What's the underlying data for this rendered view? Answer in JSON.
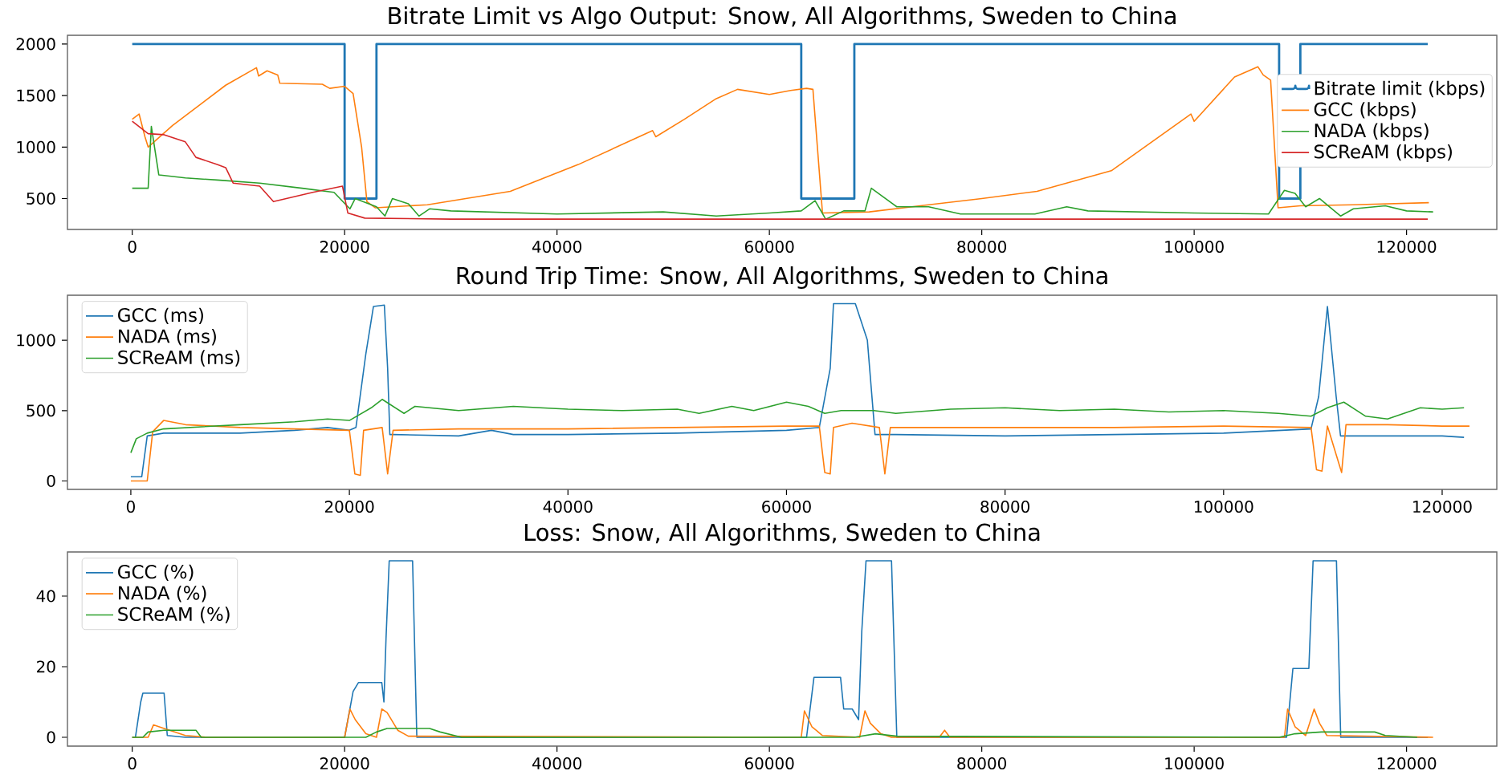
{
  "chart_data": [
    {
      "type": "line",
      "title": "Bitrate Limit vs Algo Output: Snow, All Algorithms, Sweden to China",
      "xlim": [
        -6100,
        128500
      ],
      "ylim": [
        200,
        2085
      ],
      "xticks": [
        0,
        20000,
        40000,
        60000,
        80000,
        100000,
        120000
      ],
      "yticks": [
        500,
        1000,
        1500,
        2000
      ],
      "legend": "top right",
      "series": [
        {
          "name": "Bitrate limit (kbps)",
          "type": "step",
          "color": "#1f77b4",
          "x": [
            0,
            20000,
            23000,
            63000,
            68000,
            108000,
            110000,
            122000
          ],
          "values": [
            2000,
            500,
            2000,
            500,
            2000,
            500,
            2000,
            2000
          ]
        },
        {
          "name": "GCC (kbps)",
          "color": "#ff7f0e",
          "x": [
            0,
            650,
            1200,
            1500,
            3800,
            8800,
            11700,
            11900,
            12700,
            13700,
            13900,
            17900,
            18600,
            20000,
            20800,
            21600,
            22100,
            22900,
            27800,
            35600,
            42000,
            49000,
            49300,
            52000,
            55000,
            57000,
            60000,
            62000,
            63500,
            64100,
            65000,
            69400,
            75000,
            80000,
            85200,
            92200,
            99700,
            100000,
            103800,
            106000,
            106500,
            107200,
            107900,
            110000,
            115000,
            122100
          ],
          "values": [
            1270,
            1320,
            1100,
            1000,
            1210,
            1600,
            1770,
            1690,
            1740,
            1700,
            1620,
            1610,
            1570,
            1590,
            1520,
            1000,
            470,
            410,
            440,
            570,
            830,
            1160,
            1100,
            1270,
            1470,
            1560,
            1510,
            1550,
            1570,
            1560,
            360,
            370,
            440,
            500,
            570,
            770,
            1320,
            1250,
            1680,
            1780,
            1700,
            1650,
            410,
            430,
            440,
            460
          ]
        },
        {
          "name": "NADA (kbps)",
          "color": "#2ca02c",
          "x": [
            0,
            1500,
            1800,
            2500,
            5000,
            8000,
            12000,
            16000,
            19000,
            20500,
            21000,
            23000,
            23800,
            24500,
            26000,
            27000,
            28000,
            30000,
            40000,
            50000,
            55000,
            60000,
            63000,
            64300,
            65300,
            67000,
            69000,
            69600,
            72000,
            75000,
            78000,
            85000,
            88000,
            90000,
            100000,
            107000,
            108500,
            109500,
            110500,
            111800,
            113800,
            115000,
            118000,
            120000,
            122500
          ],
          "values": [
            600,
            600,
            1200,
            730,
            700,
            680,
            650,
            600,
            560,
            400,
            500,
            420,
            330,
            500,
            450,
            330,
            400,
            380,
            350,
            370,
            330,
            360,
            380,
            480,
            300,
            380,
            380,
            600,
            420,
            420,
            350,
            350,
            420,
            380,
            360,
            350,
            580,
            550,
            420,
            500,
            330,
            400,
            430,
            380,
            370
          ]
        },
        {
          "name": "SCReAM (kbps)",
          "color": "#d62728",
          "x": [
            0,
            1500,
            3000,
            5000,
            6000,
            8000,
            8800,
            9500,
            12000,
            13300,
            17000,
            19800,
            20300,
            21900,
            30000,
            60000,
            90000,
            122000
          ],
          "values": [
            1250,
            1130,
            1120,
            1050,
            900,
            830,
            800,
            650,
            620,
            470,
            560,
            620,
            360,
            310,
            300,
            300,
            300,
            300
          ]
        }
      ]
    },
    {
      "type": "line",
      "title": "Round Trip Time: Snow, All Algorithms, Sweden to China",
      "xlim": [
        -5800,
        125000
      ],
      "ylim": [
        -60,
        1320
      ],
      "xticks": [
        0,
        20000,
        40000,
        60000,
        80000,
        100000,
        120000
      ],
      "yticks": [
        0,
        500,
        1000
      ],
      "legend": "top left",
      "series": [
        {
          "name": "GCC (ms)",
          "color": "#1f77b4",
          "x": [
            0,
            1000,
            1500,
            3000,
            10000,
            15000,
            18000,
            20000,
            20600,
            21500,
            22200,
            23200,
            23500,
            23700,
            24000,
            30000,
            33000,
            35000,
            40000,
            50000,
            55000,
            60000,
            63000,
            64000,
            64300,
            66300,
            67400,
            68100,
            70000,
            80000,
            90000,
            100000,
            108000,
            108700,
            109500,
            110300,
            110700,
            115000,
            120000,
            122000
          ],
          "values": [
            30,
            30,
            320,
            340,
            340,
            360,
            380,
            360,
            380,
            900,
            1240,
            1250,
            800,
            330,
            330,
            320,
            360,
            330,
            330,
            340,
            350,
            360,
            380,
            800,
            1260,
            1260,
            1000,
            330,
            330,
            320,
            330,
            340,
            370,
            600,
            1240,
            600,
            320,
            320,
            320,
            310
          ]
        },
        {
          "name": "NADA (ms)",
          "color": "#ff7f0e",
          "x": [
            0,
            1500,
            2000,
            3000,
            5000,
            10000,
            15000,
            20000,
            20500,
            21000,
            21300,
            23000,
            23500,
            24000,
            30000,
            40000,
            50000,
            60000,
            63000,
            63500,
            64000,
            64300,
            66000,
            68500,
            69000,
            69500,
            80000,
            90000,
            100000,
            108000,
            108500,
            109000,
            109500,
            110800,
            111200,
            115000,
            120000,
            122500
          ],
          "values": [
            0,
            0,
            350,
            430,
            400,
            380,
            370,
            360,
            50,
            40,
            360,
            380,
            50,
            360,
            370,
            370,
            380,
            390,
            390,
            60,
            50,
            380,
            410,
            380,
            50,
            380,
            380,
            380,
            390,
            380,
            80,
            70,
            390,
            60,
            400,
            400,
            390,
            390
          ]
        },
        {
          "name": "SCReAM (ms)",
          "color": "#2ca02c",
          "x": [
            0,
            500,
            1500,
            3000,
            10000,
            15000,
            18000,
            20000,
            22000,
            23000,
            25000,
            26000,
            30000,
            35000,
            40000,
            45000,
            50000,
            52000,
            55000,
            57000,
            60000,
            62000,
            63500,
            65000,
            68000,
            70000,
            75000,
            80000,
            85000,
            90000,
            95000,
            100000,
            105000,
            108000,
            109500,
            111000,
            113000,
            115000,
            118000,
            120000,
            122000
          ],
          "values": [
            200,
            300,
            340,
            370,
            400,
            420,
            440,
            430,
            520,
            580,
            480,
            530,
            500,
            530,
            510,
            500,
            510,
            480,
            530,
            500,
            560,
            530,
            480,
            500,
            500,
            480,
            510,
            520,
            500,
            510,
            490,
            500,
            480,
            460,
            520,
            560,
            460,
            440,
            520,
            510,
            520
          ]
        }
      ]
    },
    {
      "type": "line",
      "title": "Loss: Snow, All Algorithms, Sweden to China",
      "xlim": [
        -6100,
        128500
      ],
      "ylim": [
        -2.5,
        52.5
      ],
      "xticks": [
        0,
        20000,
        40000,
        60000,
        80000,
        100000,
        120000
      ],
      "yticks": [
        0,
        20,
        40
      ],
      "legend": "top left",
      "series": [
        {
          "name": "GCC (%)",
          "color": "#1f77b4",
          "x": [
            0,
            300,
            800,
            1000,
            3000,
            3300,
            5000,
            20000,
            20800,
            21300,
            23500,
            23700,
            23900,
            24200,
            26400,
            26800,
            63500,
            64200,
            66700,
            67000,
            67800,
            68400,
            68700,
            69100,
            71500,
            72000,
            108700,
            109300,
            110800,
            111200,
            113400,
            113800,
            122000
          ],
          "values": [
            0,
            0,
            10,
            12.5,
            12.5,
            0.5,
            0,
            0,
            13,
            15.5,
            15.5,
            10,
            28,
            50,
            50,
            0,
            0,
            17,
            17,
            8,
            8,
            5,
            30,
            50,
            50,
            0,
            0,
            19.5,
            19.5,
            50,
            50,
            0,
            0
          ]
        },
        {
          "name": "NADA (%)",
          "color": "#ff7f0e",
          "x": [
            0,
            1500,
            2000,
            3000,
            5000,
            7000,
            20000,
            20500,
            21000,
            22000,
            23000,
            23500,
            24000,
            25000,
            26000,
            63000,
            63300,
            64000,
            65000,
            68500,
            69000,
            69500,
            70500,
            71500,
            76000,
            76500,
            77000,
            108500,
            108800,
            109500,
            110500,
            111300,
            111800,
            112500,
            122500
          ],
          "values": [
            0,
            0,
            3.5,
            2.5,
            0.5,
            0,
            0,
            8,
            5,
            1,
            0,
            8,
            7,
            2,
            0.3,
            0,
            7.5,
            3,
            0.5,
            0,
            7.5,
            4,
            1,
            0,
            0,
            2,
            0,
            0,
            8,
            3,
            0.5,
            8,
            4,
            0.5,
            0
          ]
        },
        {
          "name": "SCReAM (%)",
          "color": "#2ca02c",
          "x": [
            0,
            1000,
            1500,
            3000,
            6000,
            6500,
            22000,
            23000,
            24000,
            28000,
            29000,
            31000,
            68000,
            70000,
            72000,
            108000,
            109500,
            112000,
            117000,
            118000,
            121000
          ],
          "values": [
            0,
            0,
            1.5,
            2,
            2,
            0,
            0,
            1.5,
            2.5,
            2.5,
            1.5,
            0,
            0,
            1,
            0.3,
            0,
            1,
            1.5,
            1.5,
            0.5,
            0
          ]
        }
      ]
    }
  ]
}
